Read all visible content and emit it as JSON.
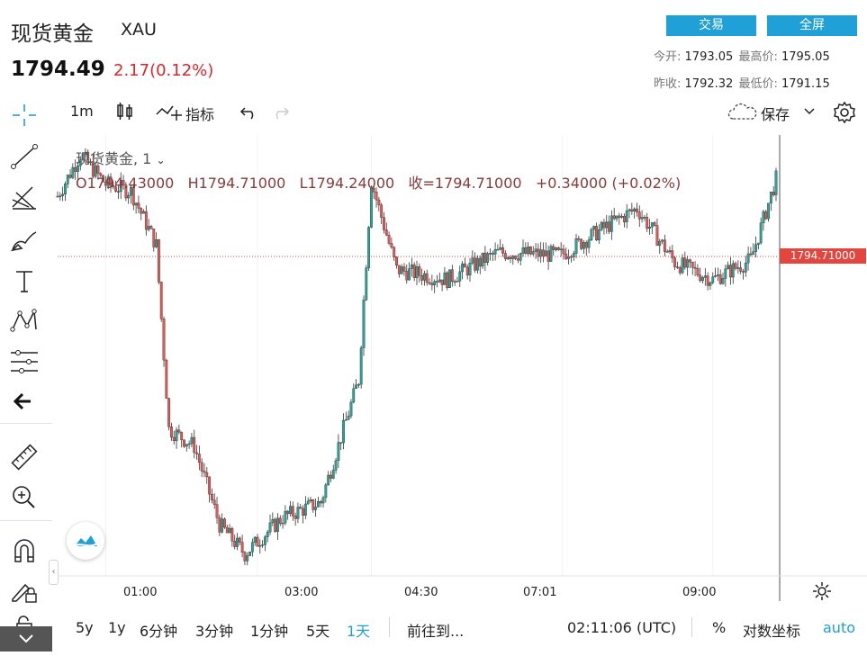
{
  "header": {
    "title": "现货黄金",
    "symbol": "XAU",
    "last_price": "1794.49",
    "change": "2.17(0.12%)",
    "trade_button": "交易",
    "fullscreen_button": "全屏",
    "open_label": "今开:",
    "open_value": "1793.05",
    "high_label": "最高价:",
    "high_value": "1795.05",
    "prev_close_label": "昨收:",
    "prev_close_value": "1792.32",
    "low_label": "最低价:",
    "low_value": "1791.15"
  },
  "toolbar": {
    "interval": "1m",
    "indicators_label": "指标",
    "save_label": "保存"
  },
  "legend": {
    "series_name": "现货黄金, 1",
    "open": "O1794.43000",
    "high": "H1794.71000",
    "low": "L1794.24000",
    "close": "收=1794.71000",
    "change": "+0.34000 (+0.02%)"
  },
  "price_label": "1794.71000",
  "bottom_bar": {
    "ranges": [
      "5y",
      "1y",
      "6分钟",
      "3分钟",
      "1分钟",
      "5天",
      "1天"
    ],
    "goto_label": "前往到...",
    "clock": "02:11:06 (UTC)",
    "percent_label": "%",
    "log_label": "对数坐标",
    "auto_label": "auto"
  },
  "colors": {
    "up": "#26a69a",
    "down": "#ef5350",
    "accent": "#1fa0d6",
    "price_line": "#e2463f"
  },
  "chart_data": {
    "type": "candlestick",
    "x_ticks": [
      "01:00",
      "03:00",
      "04:30",
      "07:01",
      "09:00"
    ],
    "current_price": 1794.71,
    "y_range": [
      1778.5,
      1796.5
    ],
    "time_range": [
      "00:22",
      "09:50"
    ],
    "close_path": [
      {
        "t": "00:22",
        "p": 1794.0
      },
      {
        "t": "00:40",
        "p": 1795.7
      },
      {
        "t": "01:00",
        "p": 1794.5
      },
      {
        "t": "01:20",
        "p": 1794.2
      },
      {
        "t": "01:40",
        "p": 1792.0
      },
      {
        "t": "01:50",
        "p": 1784.5
      },
      {
        "t": "02:10",
        "p": 1783.8
      },
      {
        "t": "02:30",
        "p": 1780.6
      },
      {
        "t": "02:50",
        "p": 1779.4
      },
      {
        "t": "03:20",
        "p": 1780.9
      },
      {
        "t": "03:50",
        "p": 1781.5
      },
      {
        "t": "04:20",
        "p": 1786.5
      },
      {
        "t": "04:30",
        "p": 1794.6
      },
      {
        "t": "04:50",
        "p": 1791.0
      },
      {
        "t": "05:30",
        "p": 1790.6
      },
      {
        "t": "06:10",
        "p": 1791.7
      },
      {
        "t": "07:00",
        "p": 1791.6
      },
      {
        "t": "07:40",
        "p": 1792.9
      },
      {
        "t": "08:00",
        "p": 1793.5
      },
      {
        "t": "08:30",
        "p": 1791.3
      },
      {
        "t": "09:00",
        "p": 1790.6
      },
      {
        "t": "09:30",
        "p": 1791.4
      },
      {
        "t": "09:50",
        "p": 1794.7
      }
    ]
  }
}
